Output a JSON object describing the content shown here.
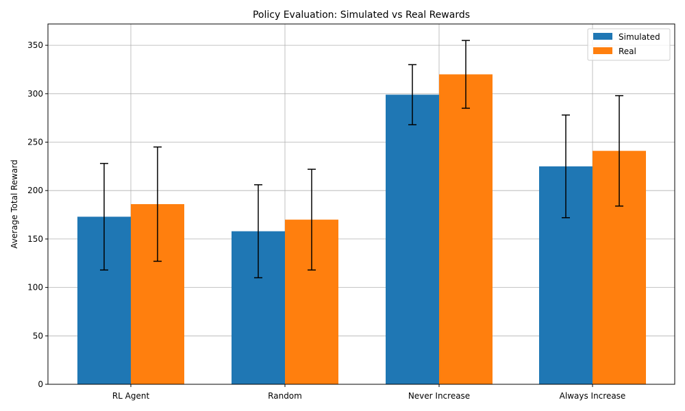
{
  "chart_data": {
    "type": "bar",
    "title": "Policy Evaluation: Simulated vs Real Rewards",
    "xlabel": "",
    "ylabel": "Average Total Reward",
    "ylim": [
      0,
      372
    ],
    "yticks": [
      0,
      50,
      100,
      150,
      200,
      250,
      300,
      350
    ],
    "grid": true,
    "legend_position": "top-right",
    "categories": [
      "RL Agent",
      "Random",
      "Never Increase",
      "Always Increase"
    ],
    "series": [
      {
        "name": "Simulated",
        "color": "#1f77b4",
        "values": [
          173,
          158,
          299,
          225
        ],
        "error": [
          55,
          48,
          31,
          53
        ]
      },
      {
        "name": "Real",
        "color": "#ff7f0e",
        "values": [
          186,
          170,
          320,
          241
        ],
        "error": [
          59,
          52,
          35,
          57
        ]
      }
    ]
  }
}
